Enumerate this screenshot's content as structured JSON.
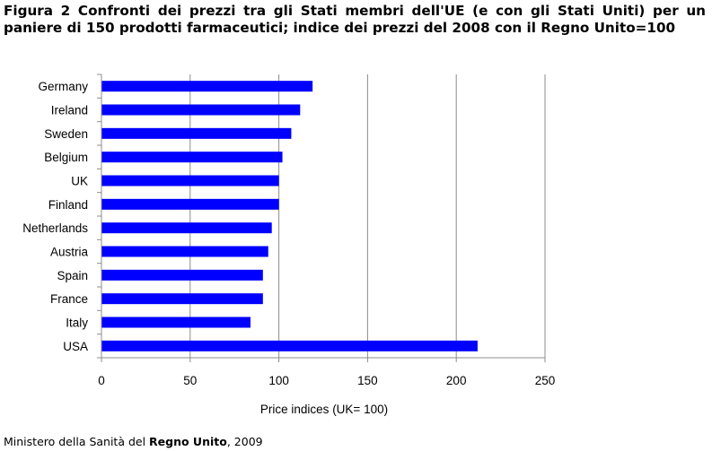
{
  "figure_title": "Figura 2 Confronti dei prezzi tra gli Stati membri dell'UE (e con gli Stati Uniti) per un paniere di 150 prodotti farmaceutici; indice dei prezzi del 2008 con il Regno Unito=100",
  "source": {
    "prefix": "Ministero della Sanità del ",
    "emphasis": "Regno Unito",
    "suffix": ", 2009"
  },
  "chart_data": {
    "type": "bar",
    "orientation": "horizontal",
    "categories": [
      "Germany",
      "Ireland",
      "Sweden",
      "Belgium",
      "UK",
      "Finland",
      "Netherlands",
      "Austria",
      "Spain",
      "France",
      "Italy",
      "USA"
    ],
    "values": [
      119,
      112,
      107,
      102,
      100,
      100,
      96,
      94,
      91,
      91,
      84,
      212
    ],
    "xlabel": "Price indices (UK= 100)",
    "ylabel": "",
    "xlim": [
      0,
      250
    ],
    "xticks": [
      "0",
      "50",
      "100",
      "150",
      "200",
      "250"
    ],
    "grid": "vertical",
    "bar_color": "#0000ff",
    "grid_color": "#8c8c8c",
    "axis_color": "#8c8c8c"
  }
}
